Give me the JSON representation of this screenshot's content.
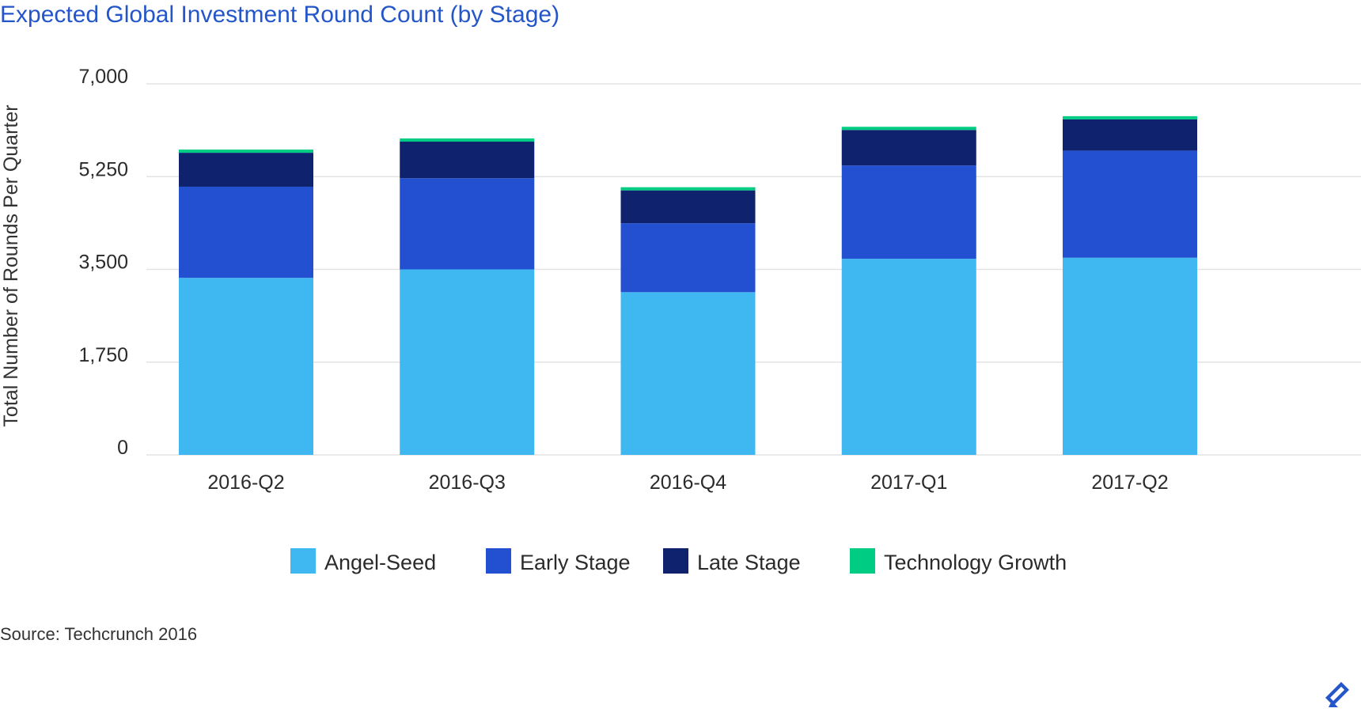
{
  "chart_data": {
    "type": "bar",
    "stacked": true,
    "title": "Expected Global Investment Round Count (by Stage)",
    "xlabel": "",
    "ylabel": "Total Number of Rounds Per Quarter",
    "ylim": [
      0,
      7000
    ],
    "yticks": [
      "0",
      "1,750",
      "3,500",
      "5,250",
      "7,000"
    ],
    "ytick_values": [
      0,
      1750,
      3500,
      5250,
      7000
    ],
    "grid": true,
    "legend_position": "bottom",
    "categories": [
      "2016-Q2",
      "2016-Q3",
      "2016-Q4",
      "2017-Q1",
      "2017-Q2"
    ],
    "series": [
      {
        "name": "Angel-Seed",
        "color": "#3fb8f2",
        "values": [
          3340,
          3500,
          3070,
          3700,
          3720
        ]
      },
      {
        "name": "Early Stage",
        "color": "#2350d1",
        "values": [
          1720,
          1720,
          1300,
          1760,
          2020
        ]
      },
      {
        "name": "Late Stage",
        "color": "#0f226e",
        "values": [
          640,
          690,
          620,
          670,
          590
        ]
      },
      {
        "name": "Technology Growth",
        "color": "#00cc83",
        "values": [
          60,
          60,
          60,
          60,
          60
        ]
      }
    ]
  },
  "footer": {
    "source": "Source: Techcrunch 2016",
    "logo_icon": "toptal-logo-icon"
  }
}
